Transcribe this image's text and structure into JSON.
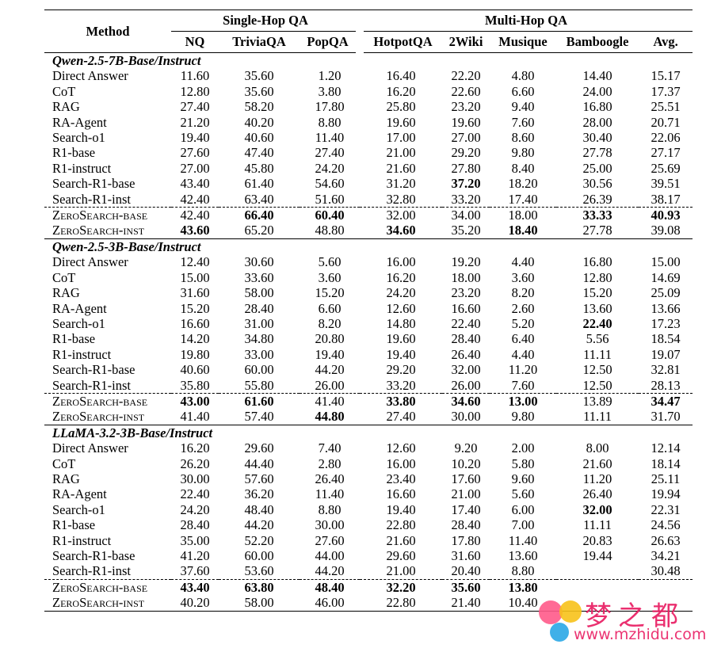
{
  "header": {
    "method": "Method",
    "groups": [
      "Single-Hop QA",
      "Multi-Hop QA"
    ],
    "columns": [
      "NQ",
      "TriviaQA",
      "PopQA",
      "HotpotQA",
      "2Wiki",
      "Musique",
      "Bamboogle",
      "Avg."
    ]
  },
  "sections": [
    {
      "title": "Qwen-2.5-7B-Base/Instruct",
      "rows": [
        {
          "method": "Direct Answer",
          "values": [
            "11.60",
            "35.60",
            "1.20",
            "16.40",
            "22.20",
            "4.80",
            "14.40",
            "15.17"
          ],
          "bold": []
        },
        {
          "method": "CoT",
          "values": [
            "12.80",
            "35.60",
            "3.80",
            "16.20",
            "22.60",
            "6.60",
            "24.00",
            "17.37"
          ],
          "bold": []
        },
        {
          "method": "RAG",
          "values": [
            "27.40",
            "58.20",
            "17.80",
            "25.80",
            "23.20",
            "9.40",
            "16.80",
            "25.51"
          ],
          "bold": []
        },
        {
          "method": "RA-Agent",
          "values": [
            "21.20",
            "40.20",
            "8.80",
            "19.60",
            "19.60",
            "7.60",
            "28.00",
            "20.71"
          ],
          "bold": []
        },
        {
          "method": "Search-o1",
          "values": [
            "19.40",
            "40.60",
            "11.40",
            "17.00",
            "27.00",
            "8.60",
            "30.40",
            "22.06"
          ],
          "bold": []
        },
        {
          "method": "R1-base",
          "values": [
            "27.60",
            "47.40",
            "27.40",
            "21.00",
            "29.20",
            "9.80",
            "27.78",
            "27.17"
          ],
          "bold": []
        },
        {
          "method": "R1-instruct",
          "values": [
            "27.00",
            "45.80",
            "24.20",
            "21.60",
            "27.80",
            "8.40",
            "25.00",
            "25.69"
          ],
          "bold": []
        },
        {
          "method": "Search-R1-base",
          "values": [
            "43.40",
            "61.40",
            "54.60",
            "31.20",
            "37.20",
            "18.20",
            "30.56",
            "39.51"
          ],
          "bold": [
            4
          ]
        },
        {
          "method": "Search-R1-inst",
          "values": [
            "42.40",
            "63.40",
            "51.60",
            "32.80",
            "33.20",
            "17.40",
            "26.39",
            "38.17"
          ],
          "bold": []
        },
        {
          "method": "ZeroSearch-base",
          "values": [
            "42.40",
            "66.40",
            "60.40",
            "32.00",
            "34.00",
            "18.00",
            "33.33",
            "40.93"
          ],
          "bold": [
            1,
            2,
            6,
            7
          ],
          "ours": true
        },
        {
          "method": "ZeroSearch-inst",
          "values": [
            "43.60",
            "65.20",
            "48.80",
            "34.60",
            "35.20",
            "18.40",
            "27.78",
            "39.08"
          ],
          "bold": [
            0,
            3,
            5
          ],
          "ours": true
        }
      ]
    },
    {
      "title": "Qwen-2.5-3B-Base/Instruct",
      "rows": [
        {
          "method": "Direct Answer",
          "values": [
            "12.40",
            "30.60",
            "5.60",
            "16.00",
            "19.20",
            "4.40",
            "16.80",
            "15.00"
          ],
          "bold": []
        },
        {
          "method": "CoT",
          "values": [
            "15.00",
            "33.60",
            "3.60",
            "16.20",
            "18.00",
            "3.60",
            "12.80",
            "14.69"
          ],
          "bold": []
        },
        {
          "method": "RAG",
          "values": [
            "31.60",
            "58.00",
            "15.20",
            "24.20",
            "23.20",
            "8.20",
            "15.20",
            "25.09"
          ],
          "bold": []
        },
        {
          "method": "RA-Agent",
          "values": [
            "15.20",
            "28.40",
            "6.60",
            "12.60",
            "16.60",
            "2.60",
            "13.60",
            "13.66"
          ],
          "bold": []
        },
        {
          "method": "Search-o1",
          "values": [
            "16.60",
            "31.00",
            "8.20",
            "14.80",
            "22.40",
            "5.20",
            "22.40",
            "17.23"
          ],
          "bold": [
            6
          ]
        },
        {
          "method": "R1-base",
          "values": [
            "14.20",
            "34.80",
            "20.80",
            "19.60",
            "28.40",
            "6.40",
            "5.56",
            "18.54"
          ],
          "bold": []
        },
        {
          "method": "R1-instruct",
          "values": [
            "19.80",
            "33.00",
            "19.40",
            "19.40",
            "26.40",
            "4.40",
            "11.11",
            "19.07"
          ],
          "bold": []
        },
        {
          "method": "Search-R1-base",
          "values": [
            "40.60",
            "60.00",
            "44.20",
            "29.20",
            "32.00",
            "11.20",
            "12.50",
            "32.81"
          ],
          "bold": []
        },
        {
          "method": "Search-R1-inst",
          "values": [
            "35.80",
            "55.80",
            "26.00",
            "33.20",
            "26.00",
            "7.60",
            "12.50",
            "28.13"
          ],
          "bold": []
        },
        {
          "method": "ZeroSearch-base",
          "values": [
            "43.00",
            "61.60",
            "41.40",
            "33.80",
            "34.60",
            "13.00",
            "13.89",
            "34.47"
          ],
          "bold": [
            0,
            1,
            3,
            4,
            5,
            7
          ],
          "ours": true
        },
        {
          "method": "ZeroSearch-inst",
          "values": [
            "41.40",
            "57.40",
            "44.80",
            "27.40",
            "30.00",
            "9.80",
            "11.11",
            "31.70"
          ],
          "bold": [
            2
          ],
          "ours": true
        }
      ]
    },
    {
      "title": "LLaMA-3.2-3B-Base/Instruct",
      "rows": [
        {
          "method": "Direct Answer",
          "values": [
            "16.20",
            "29.60",
            "7.40",
            "12.60",
            "9.20",
            "2.00",
            "8.00",
            "12.14"
          ],
          "bold": []
        },
        {
          "method": "CoT",
          "values": [
            "26.20",
            "44.40",
            "2.80",
            "16.00",
            "10.20",
            "5.80",
            "21.60",
            "18.14"
          ],
          "bold": []
        },
        {
          "method": "RAG",
          "values": [
            "30.00",
            "57.60",
            "26.40",
            "23.40",
            "17.60",
            "9.60",
            "11.20",
            "25.11"
          ],
          "bold": []
        },
        {
          "method": "RA-Agent",
          "values": [
            "22.40",
            "36.20",
            "11.40",
            "16.60",
            "21.00",
            "5.60",
            "26.40",
            "19.94"
          ],
          "bold": []
        },
        {
          "method": "Search-o1",
          "values": [
            "24.20",
            "48.40",
            "8.80",
            "19.40",
            "17.40",
            "6.00",
            "32.00",
            "22.31"
          ],
          "bold": [
            6
          ]
        },
        {
          "method": "R1-base",
          "values": [
            "28.40",
            "44.20",
            "30.00",
            "22.80",
            "28.40",
            "7.00",
            "11.11",
            "24.56"
          ],
          "bold": []
        },
        {
          "method": "R1-instruct",
          "values": [
            "35.00",
            "52.20",
            "27.60",
            "21.60",
            "17.80",
            "11.40",
            "20.83",
            "26.63"
          ],
          "bold": []
        },
        {
          "method": "Search-R1-base",
          "values": [
            "41.20",
            "60.00",
            "44.00",
            "29.60",
            "31.60",
            "13.60",
            "19.44",
            "34.21"
          ],
          "bold": []
        },
        {
          "method": "Search-R1-inst",
          "values": [
            "37.60",
            "53.60",
            "44.20",
            "21.00",
            "20.40",
            "8.80",
            "",
            "30.48"
          ],
          "bold": []
        },
        {
          "method": "ZeroSearch-base",
          "values": [
            "43.40",
            "63.80",
            "48.40",
            "32.20",
            "35.60",
            "13.80",
            "",
            ""
          ],
          "bold": [
            0,
            1,
            2,
            3,
            4,
            5
          ],
          "ours": true
        },
        {
          "method": "ZeroSearch-inst",
          "values": [
            "40.20",
            "58.00",
            "46.00",
            "22.80",
            "21.40",
            "10.40",
            "",
            ""
          ],
          "bold": [],
          "ours": true
        }
      ]
    }
  ],
  "watermark": {
    "text": "梦之都",
    "url": "www.mzhidu.com"
  }
}
